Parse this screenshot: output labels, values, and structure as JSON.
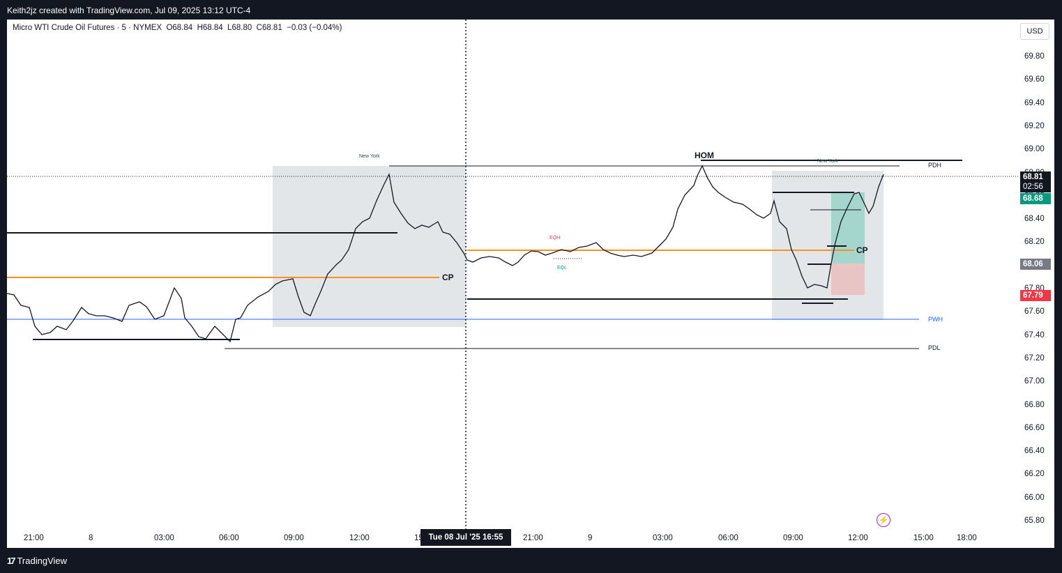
{
  "header": {
    "author_line": "Keith2jz created with TradingView.com, Jul 09, 2025 13:12 UTC-4"
  },
  "legend": {
    "symbol": "Micro WTI Crude Oil Futures · 5 · NYMEX",
    "open": "O68.84",
    "high": "H68.84",
    "low": "L68.80",
    "close": "C68.81",
    "change": "−0.03 (−0.04%)"
  },
  "currency": "USD",
  "price_axis": {
    "ticks": [
      "69.80",
      "69.60",
      "69.40",
      "69.20",
      "69.00",
      "68.80",
      "68.60",
      "68.40",
      "68.20",
      "68.00",
      "67.80",
      "67.60",
      "67.40",
      "67.20",
      "67.00",
      "66.80",
      "66.60",
      "66.40",
      "66.20",
      "66.00",
      "65.80"
    ],
    "tags": {
      "last_price": "68.81",
      "countdown": "02:56",
      "green_tag": "68.68",
      "grey_tag": "68.06",
      "red_tag": "67.79"
    }
  },
  "time_axis": {
    "ticks": [
      "21:00",
      "8",
      "03:00",
      "06:00",
      "09:00",
      "12:00",
      "15",
      "21:00",
      "9",
      "03:00",
      "06:00",
      "09:00",
      "12:00",
      "15:00",
      "18:00"
    ],
    "crosshair_label": "Tue 08 Jul '25    16:55"
  },
  "annotations": {
    "new_york_1": "New York",
    "new_york_2": "New York",
    "hom": "HOM",
    "pdh": "PDH",
    "pwh": "PWH",
    "pdl": "PDL",
    "cp_1": "CP",
    "cp_2": "CP",
    "eqh": "EQH",
    "eql": "EQL"
  },
  "footer": {
    "brand": "TradingView"
  },
  "colors": {
    "orange": "#f7931a",
    "blue": "#2962ff",
    "teal": "#089981",
    "red": "#f23645",
    "grey_box": "#e3e6e8"
  }
}
